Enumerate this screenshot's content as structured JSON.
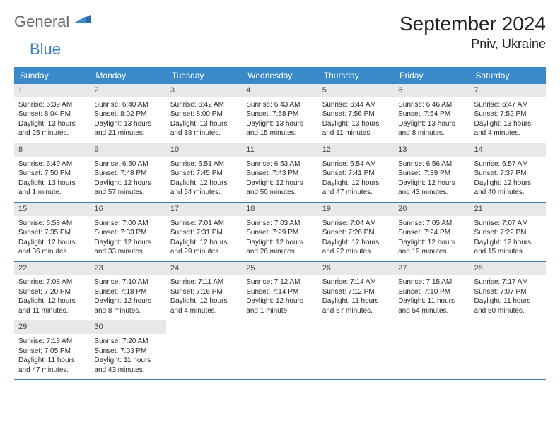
{
  "logo": {
    "text_gen": "General",
    "text_blue": "Blue"
  },
  "title": {
    "month_year": "September 2024",
    "location": "Pniv, Ukraine"
  },
  "colors": {
    "header_bg": "#3a8ac9",
    "header_text": "#ffffff",
    "daynum_bg": "#e8e8e8",
    "row_border": "#3a7fb0",
    "logo_gray": "#6a6a6a",
    "logo_blue": "#3a7fc4"
  },
  "weekdays": [
    "Sunday",
    "Monday",
    "Tuesday",
    "Wednesday",
    "Thursday",
    "Friday",
    "Saturday"
  ],
  "weeks": [
    [
      {
        "n": "1",
        "sr": "Sunrise: 6:39 AM",
        "ss": "Sunset: 8:04 PM",
        "dl": "Daylight: 13 hours and 25 minutes."
      },
      {
        "n": "2",
        "sr": "Sunrise: 6:40 AM",
        "ss": "Sunset: 8:02 PM",
        "dl": "Daylight: 13 hours and 21 minutes."
      },
      {
        "n": "3",
        "sr": "Sunrise: 6:42 AM",
        "ss": "Sunset: 8:00 PM",
        "dl": "Daylight: 13 hours and 18 minutes."
      },
      {
        "n": "4",
        "sr": "Sunrise: 6:43 AM",
        "ss": "Sunset: 7:58 PM",
        "dl": "Daylight: 13 hours and 15 minutes."
      },
      {
        "n": "5",
        "sr": "Sunrise: 6:44 AM",
        "ss": "Sunset: 7:56 PM",
        "dl": "Daylight: 13 hours and 11 minutes."
      },
      {
        "n": "6",
        "sr": "Sunrise: 6:46 AM",
        "ss": "Sunset: 7:54 PM",
        "dl": "Daylight: 13 hours and 8 minutes."
      },
      {
        "n": "7",
        "sr": "Sunrise: 6:47 AM",
        "ss": "Sunset: 7:52 PM",
        "dl": "Daylight: 13 hours and 4 minutes."
      }
    ],
    [
      {
        "n": "8",
        "sr": "Sunrise: 6:49 AM",
        "ss": "Sunset: 7:50 PM",
        "dl": "Daylight: 13 hours and 1 minute."
      },
      {
        "n": "9",
        "sr": "Sunrise: 6:50 AM",
        "ss": "Sunset: 7:48 PM",
        "dl": "Daylight: 12 hours and 57 minutes."
      },
      {
        "n": "10",
        "sr": "Sunrise: 6:51 AM",
        "ss": "Sunset: 7:45 PM",
        "dl": "Daylight: 12 hours and 54 minutes."
      },
      {
        "n": "11",
        "sr": "Sunrise: 6:53 AM",
        "ss": "Sunset: 7:43 PM",
        "dl": "Daylight: 12 hours and 50 minutes."
      },
      {
        "n": "12",
        "sr": "Sunrise: 6:54 AM",
        "ss": "Sunset: 7:41 PM",
        "dl": "Daylight: 12 hours and 47 minutes."
      },
      {
        "n": "13",
        "sr": "Sunrise: 6:56 AM",
        "ss": "Sunset: 7:39 PM",
        "dl": "Daylight: 12 hours and 43 minutes."
      },
      {
        "n": "14",
        "sr": "Sunrise: 6:57 AM",
        "ss": "Sunset: 7:37 PM",
        "dl": "Daylight: 12 hours and 40 minutes."
      }
    ],
    [
      {
        "n": "15",
        "sr": "Sunrise: 6:58 AM",
        "ss": "Sunset: 7:35 PM",
        "dl": "Daylight: 12 hours and 36 minutes."
      },
      {
        "n": "16",
        "sr": "Sunrise: 7:00 AM",
        "ss": "Sunset: 7:33 PM",
        "dl": "Daylight: 12 hours and 33 minutes."
      },
      {
        "n": "17",
        "sr": "Sunrise: 7:01 AM",
        "ss": "Sunset: 7:31 PM",
        "dl": "Daylight: 12 hours and 29 minutes."
      },
      {
        "n": "18",
        "sr": "Sunrise: 7:03 AM",
        "ss": "Sunset: 7:29 PM",
        "dl": "Daylight: 12 hours and 26 minutes."
      },
      {
        "n": "19",
        "sr": "Sunrise: 7:04 AM",
        "ss": "Sunset: 7:26 PM",
        "dl": "Daylight: 12 hours and 22 minutes."
      },
      {
        "n": "20",
        "sr": "Sunrise: 7:05 AM",
        "ss": "Sunset: 7:24 PM",
        "dl": "Daylight: 12 hours and 19 minutes."
      },
      {
        "n": "21",
        "sr": "Sunrise: 7:07 AM",
        "ss": "Sunset: 7:22 PM",
        "dl": "Daylight: 12 hours and 15 minutes."
      }
    ],
    [
      {
        "n": "22",
        "sr": "Sunrise: 7:08 AM",
        "ss": "Sunset: 7:20 PM",
        "dl": "Daylight: 12 hours and 11 minutes."
      },
      {
        "n": "23",
        "sr": "Sunrise: 7:10 AM",
        "ss": "Sunset: 7:18 PM",
        "dl": "Daylight: 12 hours and 8 minutes."
      },
      {
        "n": "24",
        "sr": "Sunrise: 7:11 AM",
        "ss": "Sunset: 7:16 PM",
        "dl": "Daylight: 12 hours and 4 minutes."
      },
      {
        "n": "25",
        "sr": "Sunrise: 7:12 AM",
        "ss": "Sunset: 7:14 PM",
        "dl": "Daylight: 12 hours and 1 minute."
      },
      {
        "n": "26",
        "sr": "Sunrise: 7:14 AM",
        "ss": "Sunset: 7:12 PM",
        "dl": "Daylight: 11 hours and 57 minutes."
      },
      {
        "n": "27",
        "sr": "Sunrise: 7:15 AM",
        "ss": "Sunset: 7:10 PM",
        "dl": "Daylight: 11 hours and 54 minutes."
      },
      {
        "n": "28",
        "sr": "Sunrise: 7:17 AM",
        "ss": "Sunset: 7:07 PM",
        "dl": "Daylight: 11 hours and 50 minutes."
      }
    ],
    [
      {
        "n": "29",
        "sr": "Sunrise: 7:18 AM",
        "ss": "Sunset: 7:05 PM",
        "dl": "Daylight: 11 hours and 47 minutes."
      },
      {
        "n": "30",
        "sr": "Sunrise: 7:20 AM",
        "ss": "Sunset: 7:03 PM",
        "dl": "Daylight: 11 hours and 43 minutes."
      },
      {
        "empty": true
      },
      {
        "empty": true
      },
      {
        "empty": true
      },
      {
        "empty": true
      },
      {
        "empty": true
      }
    ]
  ]
}
